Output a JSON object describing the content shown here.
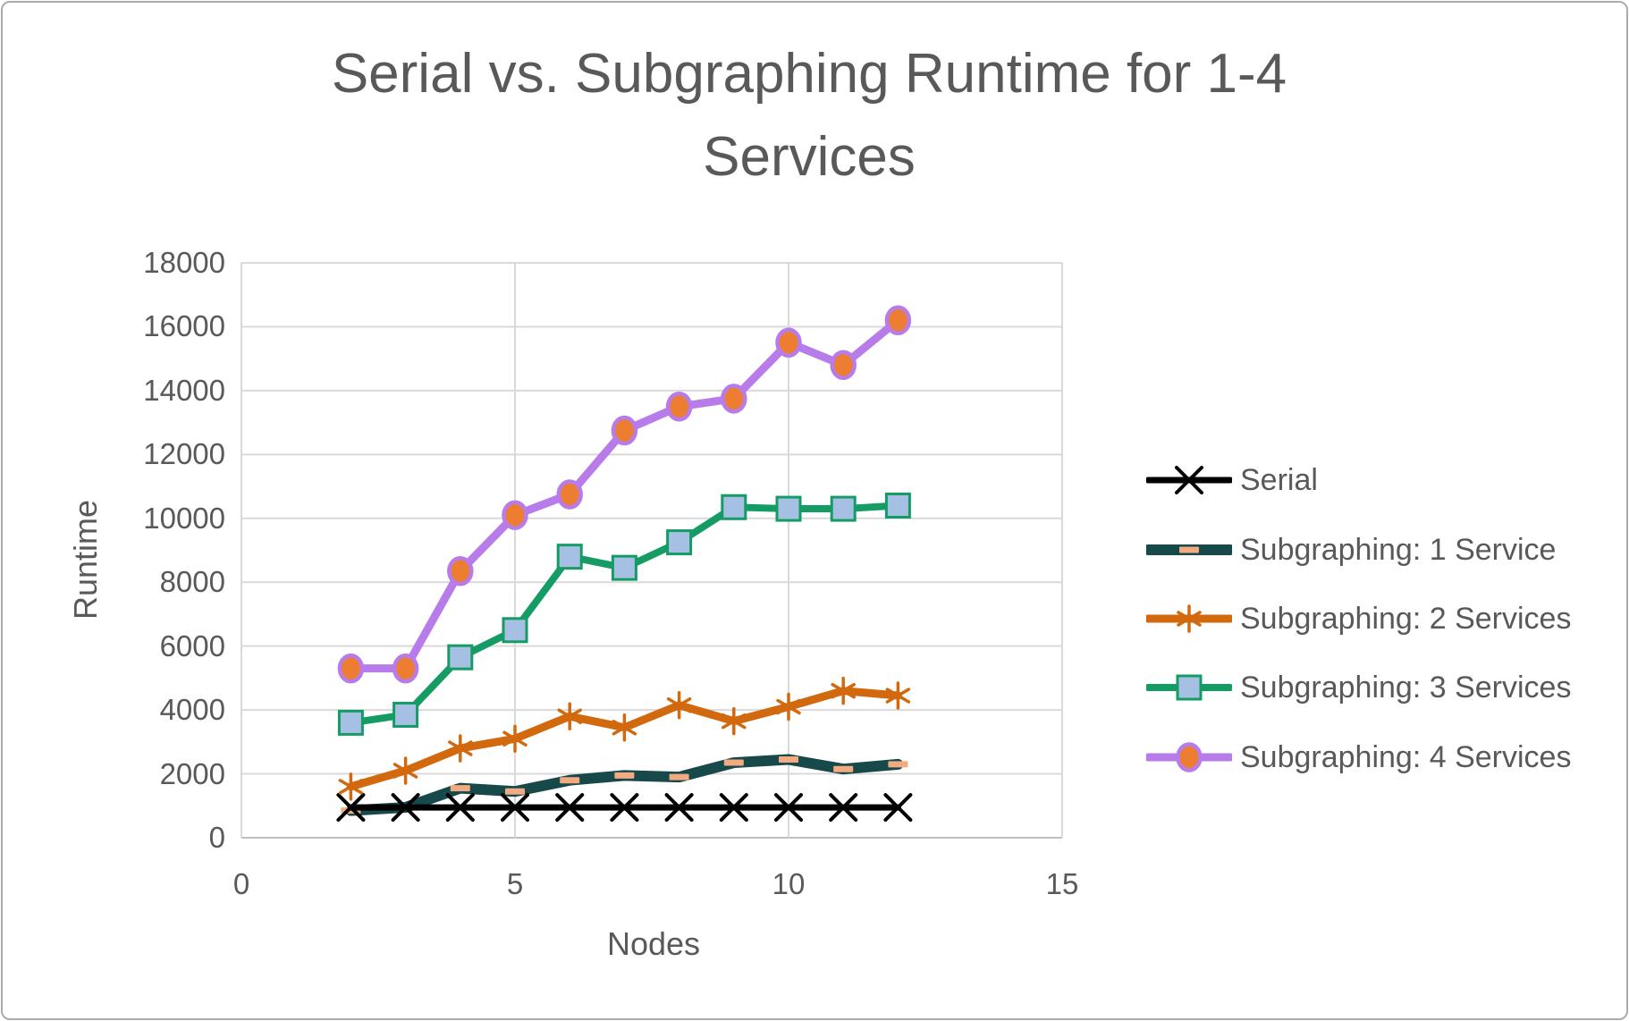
{
  "title": {
    "text": "Serial vs. Subgraphing Runtime for 1-4 Services",
    "lines": [
      "Serial vs. Subgraphing Runtime for 1-4",
      "Services"
    ]
  },
  "axes": {
    "x": {
      "label": "Nodes",
      "min": 0,
      "max": 15,
      "tick_values": [
        0,
        5,
        10,
        15
      ],
      "tick_labels": [
        "0",
        "5",
        "10",
        "15"
      ]
    },
    "y": {
      "label": "Runtime",
      "min": 0,
      "max": 18000,
      "step": 2000,
      "tick_labels": [
        "0",
        "2000",
        "4000",
        "6000",
        "8000",
        "10000",
        "12000",
        "14000",
        "16000",
        "18000"
      ]
    }
  },
  "legend": {
    "position": "right"
  },
  "colors": {
    "text": "#595959",
    "gridline": "#D9D9D9",
    "axis_line": "#BFBFBF",
    "frame_border": "#ABABAB",
    "background": "#FFFFFF"
  },
  "chart_data": {
    "type": "line",
    "title": "Serial vs. Subgraphing Runtime for 1-4 Services",
    "xlabel": "Nodes",
    "ylabel": "Runtime",
    "xlim": [
      0,
      15
    ],
    "ylim": [
      0,
      18000
    ],
    "grid": true,
    "legend_position": "right",
    "x": [
      2,
      3,
      4,
      5,
      6,
      7,
      8,
      9,
      10,
      11,
      12
    ],
    "series": [
      {
        "name": "Serial",
        "marker": "x",
        "line_color": "#000000",
        "marker_fill": "#000000",
        "line_width": 7,
        "values": [
          950,
          950,
          950,
          950,
          950,
          950,
          950,
          950,
          950,
          950,
          950
        ]
      },
      {
        "name": "Subgraphing: 1 Service",
        "marker": "dash",
        "line_color": "#17484A",
        "marker_fill": "#F2AA80",
        "line_width": 12,
        "values": [
          850,
          950,
          1550,
          1450,
          1800,
          1950,
          1900,
          2350,
          2450,
          2150,
          2300
        ]
      },
      {
        "name": "Subgraphing: 2 Services",
        "marker": "asterisk",
        "line_color": "#D2690E",
        "marker_fill": "#D2690E",
        "line_width": 9,
        "values": [
          1600,
          2100,
          2800,
          3100,
          3800,
          3450,
          4150,
          3650,
          4100,
          4600,
          4450
        ]
      },
      {
        "name": "Subgraphing: 3 Services",
        "marker": "square",
        "line_color": "#159C64",
        "marker_fill": "#A6C0E4",
        "line_width": 8,
        "values": [
          3600,
          3850,
          5650,
          6500,
          8800,
          8450,
          9250,
          10350,
          10300,
          10300,
          10400
        ]
      },
      {
        "name": "Subgraphing: 4 Services",
        "marker": "circle",
        "line_color": "#B87CEA",
        "marker_fill": "#ED7D31",
        "line_width": 9,
        "values": [
          5300,
          5300,
          8350,
          10100,
          10750,
          12750,
          13500,
          13750,
          15500,
          14800,
          16200
        ]
      }
    ]
  }
}
